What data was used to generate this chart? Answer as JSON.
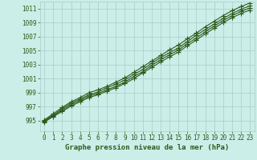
{
  "xlabel": "Graphe pression niveau de la mer (hPa)",
  "xlim": [
    -0.5,
    23.5
  ],
  "ylim": [
    993.5,
    1012.0
  ],
  "yticks": [
    995,
    997,
    999,
    1001,
    1003,
    1005,
    1007,
    1009,
    1011
  ],
  "xticks": [
    0,
    1,
    2,
    3,
    4,
    5,
    6,
    7,
    8,
    9,
    10,
    11,
    12,
    13,
    14,
    15,
    16,
    17,
    18,
    19,
    20,
    21,
    22,
    23
  ],
  "bg_color": "#cceee8",
  "grid_color": "#aacccc",
  "line_color": "#2d5a1b",
  "series": [
    [
      994.8,
      995.6,
      996.3,
      997.1,
      997.7,
      998.3,
      998.7,
      999.2,
      999.7,
      1000.3,
      1001.0,
      1001.8,
      1002.6,
      1003.4,
      1004.1,
      1004.8,
      1005.7,
      1006.5,
      1007.4,
      1008.2,
      1009.0,
      1009.7,
      1010.3,
      1010.8
    ],
    [
      994.9,
      995.7,
      996.5,
      997.3,
      997.9,
      998.5,
      998.9,
      999.4,
      999.9,
      1000.5,
      1001.3,
      1002.0,
      1002.9,
      1003.7,
      1004.4,
      1005.1,
      1006.0,
      1006.8,
      1007.7,
      1008.5,
      1009.3,
      1010.0,
      1010.6,
      1011.1
    ],
    [
      995.0,
      995.8,
      996.7,
      997.5,
      998.1,
      998.7,
      999.1,
      999.7,
      1000.2,
      1000.8,
      1001.6,
      1002.3,
      1003.2,
      1004.0,
      1004.7,
      1005.4,
      1006.3,
      1007.2,
      1008.0,
      1008.8,
      1009.6,
      1010.3,
      1010.9,
      1011.4
    ],
    [
      995.1,
      996.0,
      996.9,
      997.7,
      998.3,
      999.0,
      999.4,
      999.9,
      1000.5,
      1001.1,
      1001.9,
      1002.7,
      1003.5,
      1004.3,
      1005.1,
      1005.8,
      1006.7,
      1007.5,
      1008.4,
      1009.2,
      1010.0,
      1010.7,
      1011.3,
      1011.8
    ]
  ],
  "marker": "+",
  "markersize": 4,
  "markeredgewidth": 0.8,
  "linewidth": 0.8,
  "font_color": "#2d5a1b",
  "xlabel_fontsize": 6.5,
  "tick_fontsize": 5.5
}
